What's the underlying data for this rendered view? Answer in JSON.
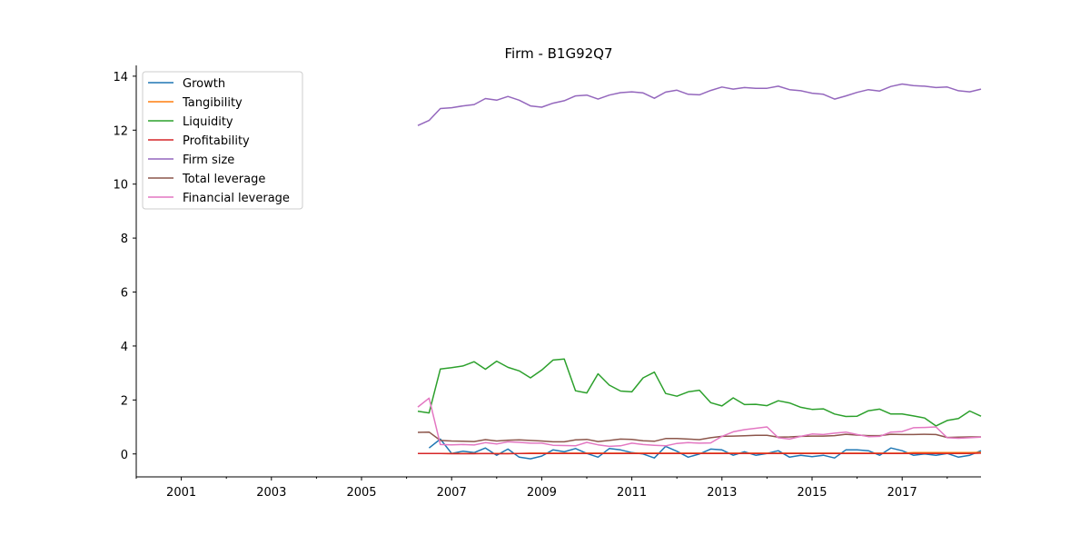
{
  "chart_data": {
    "type": "line",
    "title": "Firm - B1G92Q7",
    "xlabel": "",
    "ylabel": "",
    "xlim": [
      2000,
      2018.75
    ],
    "ylim": [
      -0.85,
      14.4
    ],
    "x_ticks": [
      2001,
      2003,
      2005,
      2007,
      2009,
      2011,
      2013,
      2015,
      2017
    ],
    "y_ticks": [
      0,
      2,
      4,
      6,
      8,
      10,
      12,
      14
    ],
    "grid": false,
    "legend_position": "upper-left",
    "x": [
      2006.25,
      2006.5,
      2006.75,
      2007.0,
      2007.25,
      2007.5,
      2007.75,
      2008.0,
      2008.25,
      2008.5,
      2008.75,
      2009.0,
      2009.25,
      2009.5,
      2009.75,
      2010.0,
      2010.25,
      2010.5,
      2010.75,
      2011.0,
      2011.25,
      2011.5,
      2011.75,
      2012.0,
      2012.25,
      2012.5,
      2012.75,
      2013.0,
      2013.25,
      2013.5,
      2013.75,
      2014.0,
      2014.25,
      2014.5,
      2014.75,
      2015.0,
      2015.25,
      2015.5,
      2015.75,
      2016.0,
      2016.25,
      2016.5,
      2016.75,
      2017.0,
      2017.25,
      2017.5,
      2017.75,
      2018.0,
      2018.25,
      2018.5,
      2018.75
    ],
    "series": [
      {
        "name": "Growth",
        "color": "#1f77b4",
        "values": [
          null,
          0.22,
          0.55,
          0.02,
          0.1,
          0.05,
          0.22,
          -0.05,
          0.18,
          -0.12,
          -0.18,
          -0.08,
          0.15,
          0.08,
          0.2,
          0.02,
          -0.12,
          0.2,
          0.15,
          0.05,
          0.0,
          -0.15,
          0.28,
          0.1,
          -0.12,
          0.0,
          0.18,
          0.15,
          -0.05,
          0.08,
          -0.05,
          0.02,
          0.12,
          -0.12,
          -0.05,
          -0.1,
          -0.05,
          -0.15,
          0.15,
          0.15,
          0.12,
          -0.05,
          0.22,
          0.12,
          -0.05,
          0.0,
          -0.05,
          0.02,
          -0.12,
          -0.05,
          0.12
        ]
      },
      {
        "name": "Tangibility",
        "color": "#ff7f0e",
        "values": [
          0.02,
          0.02,
          0.02,
          0.02,
          0.02,
          0.02,
          0.02,
          0.02,
          0.02,
          0.02,
          0.03,
          0.03,
          0.03,
          0.03,
          0.03,
          0.03,
          0.03,
          0.03,
          0.03,
          0.03,
          0.03,
          0.03,
          0.03,
          0.03,
          0.03,
          0.03,
          0.03,
          0.03,
          0.03,
          0.03,
          0.03,
          0.03,
          0.03,
          0.03,
          0.03,
          0.03,
          0.03,
          0.03,
          0.03,
          0.03,
          0.03,
          0.03,
          0.03,
          0.03,
          0.05,
          0.05,
          0.05,
          0.05,
          0.05,
          0.05,
          0.06
        ]
      },
      {
        "name": "Liquidity",
        "color": "#2ca02c",
        "values": [
          1.58,
          1.52,
          3.15,
          3.2,
          3.26,
          3.42,
          3.14,
          3.44,
          3.21,
          3.08,
          2.82,
          3.11,
          3.48,
          3.52,
          2.34,
          2.26,
          2.97,
          2.55,
          2.33,
          2.3,
          2.82,
          3.03,
          2.24,
          2.14,
          2.3,
          2.36,
          1.9,
          1.78,
          2.08,
          1.83,
          1.84,
          1.79,
          1.97,
          1.89,
          1.73,
          1.65,
          1.67,
          1.48,
          1.39,
          1.4,
          1.6,
          1.66,
          1.48,
          1.48,
          1.41,
          1.33,
          1.04,
          1.24,
          1.31,
          1.59,
          1.4
        ]
      },
      {
        "name": "Profitability",
        "color": "#d62728",
        "values": [
          0.02,
          0.02,
          0.02,
          0.01,
          0.01,
          0.01,
          0.02,
          0.01,
          0.01,
          0.02,
          0.02,
          0.02,
          0.02,
          0.02,
          0.02,
          0.02,
          0.02,
          0.02,
          0.02,
          0.02,
          0.02,
          0.02,
          0.02,
          0.02,
          0.02,
          0.02,
          0.02,
          0.02,
          0.02,
          0.02,
          0.02,
          0.02,
          0.02,
          0.02,
          0.02,
          0.02,
          0.02,
          0.02,
          0.02,
          0.02,
          0.02,
          0.02,
          0.02,
          0.02,
          0.02,
          0.02,
          0.02,
          0.02,
          0.02,
          0.02,
          0.03
        ]
      },
      {
        "name": "Firm size",
        "color": "#9467bd",
        "values": [
          12.17,
          12.36,
          12.8,
          12.83,
          12.9,
          12.95,
          13.17,
          13.11,
          13.25,
          13.11,
          12.9,
          12.85,
          13.0,
          13.09,
          13.27,
          13.3,
          13.15,
          13.3,
          13.39,
          13.42,
          13.38,
          13.18,
          13.41,
          13.48,
          13.33,
          13.31,
          13.47,
          13.6,
          13.52,
          13.58,
          13.55,
          13.55,
          13.63,
          13.5,
          13.46,
          13.37,
          13.33,
          13.15,
          13.27,
          13.4,
          13.5,
          13.45,
          13.62,
          13.71,
          13.65,
          13.63,
          13.58,
          13.6,
          13.46,
          13.42,
          13.52
        ]
      },
      {
        "name": "Total leverage",
        "color": "#8c564b",
        "values": [
          0.8,
          0.81,
          0.5,
          0.48,
          0.47,
          0.46,
          0.53,
          0.48,
          0.51,
          0.52,
          0.5,
          0.48,
          0.45,
          0.45,
          0.52,
          0.54,
          0.46,
          0.5,
          0.55,
          0.54,
          0.49,
          0.47,
          0.57,
          0.57,
          0.55,
          0.53,
          0.6,
          0.65,
          0.66,
          0.67,
          0.69,
          0.69,
          0.62,
          0.63,
          0.65,
          0.66,
          0.66,
          0.68,
          0.73,
          0.7,
          0.68,
          0.68,
          0.73,
          0.72,
          0.72,
          0.73,
          0.72,
          0.61,
          0.62,
          0.63,
          0.63
        ]
      },
      {
        "name": "Financial leverage",
        "color": "#e377c2",
        "values": [
          1.74,
          2.07,
          0.35,
          0.34,
          0.35,
          0.33,
          0.42,
          0.37,
          0.45,
          0.43,
          0.4,
          0.4,
          0.32,
          0.31,
          0.3,
          0.43,
          0.34,
          0.28,
          0.3,
          0.4,
          0.35,
          0.32,
          0.3,
          0.39,
          0.42,
          0.4,
          0.41,
          0.65,
          0.82,
          0.9,
          0.95,
          1.0,
          0.6,
          0.55,
          0.65,
          0.74,
          0.72,
          0.77,
          0.81,
          0.72,
          0.64,
          0.65,
          0.81,
          0.83,
          0.97,
          0.98,
          1.0,
          0.6,
          0.58,
          0.6,
          0.62
        ]
      }
    ]
  }
}
